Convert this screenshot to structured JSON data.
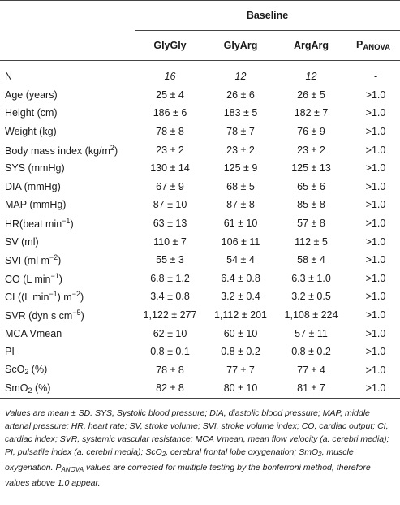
{
  "header": {
    "group_title": "Baseline",
    "col_glygly": "GlyGly",
    "col_glyarg": "GlyArg",
    "col_argarg": "ArgArg",
    "col_p_main": "P",
    "col_p_sub": "ANOVA"
  },
  "rows": [
    {
      "label": "N",
      "glygly": "16",
      "glyarg": "12",
      "argarg": "12",
      "p": "-"
    },
    {
      "label": "Age (years)",
      "glygly": "25 ± 4",
      "glyarg": "26 ± 6",
      "argarg": "26 ± 5",
      "p": ">1.0"
    },
    {
      "label": "Height (cm)",
      "glygly": "186 ± 6",
      "glyarg": "183 ± 5",
      "argarg": "182 ± 7",
      "p": ">1.0"
    },
    {
      "label": "Weight (kg)",
      "glygly": "78 ± 8",
      "glyarg": "78 ± 7",
      "argarg": "76 ± 9",
      "p": ">1.0"
    },
    {
      "label_pre": "Body mass index (kg/m",
      "label_sup": "2",
      "label_post": ")",
      "glygly": "23 ± 2",
      "glyarg": "23 ± 2",
      "argarg": "23 ± 2",
      "p": ">1.0"
    },
    {
      "label": "SYS (mmHg)",
      "glygly": "130 ± 14",
      "glyarg": "125 ± 9",
      "argarg": "125 ± 13",
      "p": ">1.0"
    },
    {
      "label": "DIA (mmHg)",
      "glygly": "67 ± 9",
      "glyarg": "68 ± 5",
      "argarg": "65 ± 6",
      "p": ">1.0"
    },
    {
      "label": "MAP (mmHg)",
      "glygly": "87 ± 10",
      "glyarg": "87 ± 8",
      "argarg": "85 ± 8",
      "p": ">1.0"
    },
    {
      "label_pre": "HR(beat min",
      "label_sup": "−1",
      "label_post": ")",
      "glygly": "63 ± 13",
      "glyarg": "61 ± 10",
      "argarg": "57 ± 8",
      "p": ">1.0"
    },
    {
      "label": "SV (ml)",
      "glygly": "110 ± 7",
      "glyarg": "106 ± 11",
      "argarg": "112 ± 5",
      "p": ">1.0"
    },
    {
      "label_pre": "SVI (ml m",
      "label_sup": "−2",
      "label_post": ")",
      "glygly": "55 ± 3",
      "glyarg": "54 ± 4",
      "argarg": "58 ± 4",
      "p": ">1.0"
    },
    {
      "label_pre": "CO (L min",
      "label_sup": "−1",
      "label_post": ")",
      "glygly": "6.8 ± 1.2",
      "glyarg": "6.4 ± 0.8",
      "argarg": "6.3 ± 1.0",
      "p": ">1.0"
    },
    {
      "label_pre": "CI ((L min",
      "label_sup": "−1",
      "label_post": ") m",
      "label_sup2": "−2",
      "label_post2": ")",
      "glygly": "3.4 ± 0.8",
      "glyarg": "3.2 ± 0.4",
      "argarg": "3.2 ± 0.5",
      "p": ">1.0"
    },
    {
      "label_pre": "SVR (dyn s cm",
      "label_sup": "−5",
      "label_post": ")",
      "glygly": "1,122 ± 277",
      "glyarg": "1,112 ± 201",
      "argarg": "1,108 ± 224",
      "p": ">1.0"
    },
    {
      "label": "MCA Vmean",
      "glygly": "62 ± 10",
      "glyarg": "60 ± 10",
      "argarg": "57 ± 11",
      "p": ">1.0"
    },
    {
      "label": "PI",
      "glygly": "0.8 ± 0.1",
      "glyarg": "0.8 ± 0.2",
      "argarg": "0.8 ± 0.2",
      "p": ">1.0"
    },
    {
      "label_pre": "ScO",
      "label_sub": "2",
      "label_post": " (%)",
      "glygly": "78 ± 8",
      "glyarg": "77 ± 7",
      "argarg": "77 ± 4",
      "p": ">1.0"
    },
    {
      "label_pre": "SmO",
      "label_sub": "2",
      "label_post": " (%)",
      "glygly": "82 ± 8",
      "glyarg": "80 ± 10",
      "argarg": "81 ± 7",
      "p": ">1.0"
    }
  ],
  "footnote": {
    "part1": "Values are mean ± SD. SYS, Systolic blood pressure; DIA, diastolic blood pressure; MAP, middle arterial pressure; HR, heart rate; SV, stroke volume; SVI, stroke volume index; CO, cardiac output; CI, cardiac index; SVR, systemic vascular resistance; MCA Vmean, mean flow velocity (a. cerebri media); PI, pulsatile index (a. cerebri media); ScO",
    "sub1": "2",
    "part2": ", cerebral frontal lobe oxygenation; SmO",
    "sub2": "2",
    "part3": ", muscle oxygenation. P",
    "sub3": "ANOVA",
    "part4": " values are corrected for multiple testing by the bonferroni method, therefore values above 1.0 appear."
  }
}
